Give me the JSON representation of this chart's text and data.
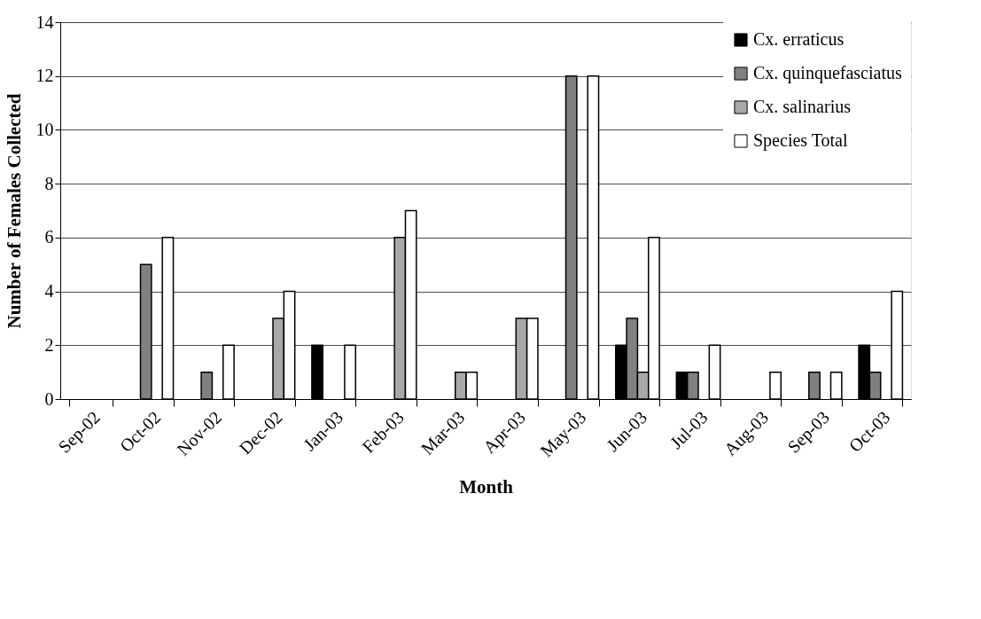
{
  "chart_data": {
    "type": "bar",
    "xlabel": "Month",
    "ylabel": "Number of Females Collected",
    "categories": [
      "Sep-02",
      "Oct-02",
      "Nov-02",
      "Dec-02",
      "Jan-03",
      "Feb-03",
      "Mar-03",
      "Apr-03",
      "May-03",
      "Jun-03",
      "Jul-03",
      "Aug-03",
      "Sep-03",
      "Oct-03"
    ],
    "series": [
      {
        "name": "Cx. erraticus",
        "color": "#000000",
        "values": [
          null,
          null,
          null,
          null,
          2,
          null,
          null,
          null,
          null,
          2,
          1,
          null,
          null,
          2
        ]
      },
      {
        "name": "Cx. quinquefasciatus",
        "color": "#808080",
        "values": [
          null,
          5,
          1,
          null,
          null,
          null,
          null,
          null,
          12,
          3,
          1,
          null,
          1,
          1
        ]
      },
      {
        "name": "Cx. salinarius",
        "color": "#a8a8a8",
        "values": [
          null,
          null,
          null,
          3,
          null,
          6,
          1,
          3,
          null,
          1,
          null,
          null,
          null,
          null
        ]
      },
      {
        "name": "Species Total",
        "color": "#ffffff",
        "values": [
          null,
          6,
          2,
          4,
          2,
          7,
          1,
          3,
          12,
          6,
          2,
          1,
          1,
          4
        ]
      }
    ],
    "ylim": [
      0,
      14
    ],
    "yticks": [
      0,
      2,
      4,
      6,
      8,
      10,
      12,
      14
    ],
    "grid": "y",
    "legend": "top right"
  }
}
